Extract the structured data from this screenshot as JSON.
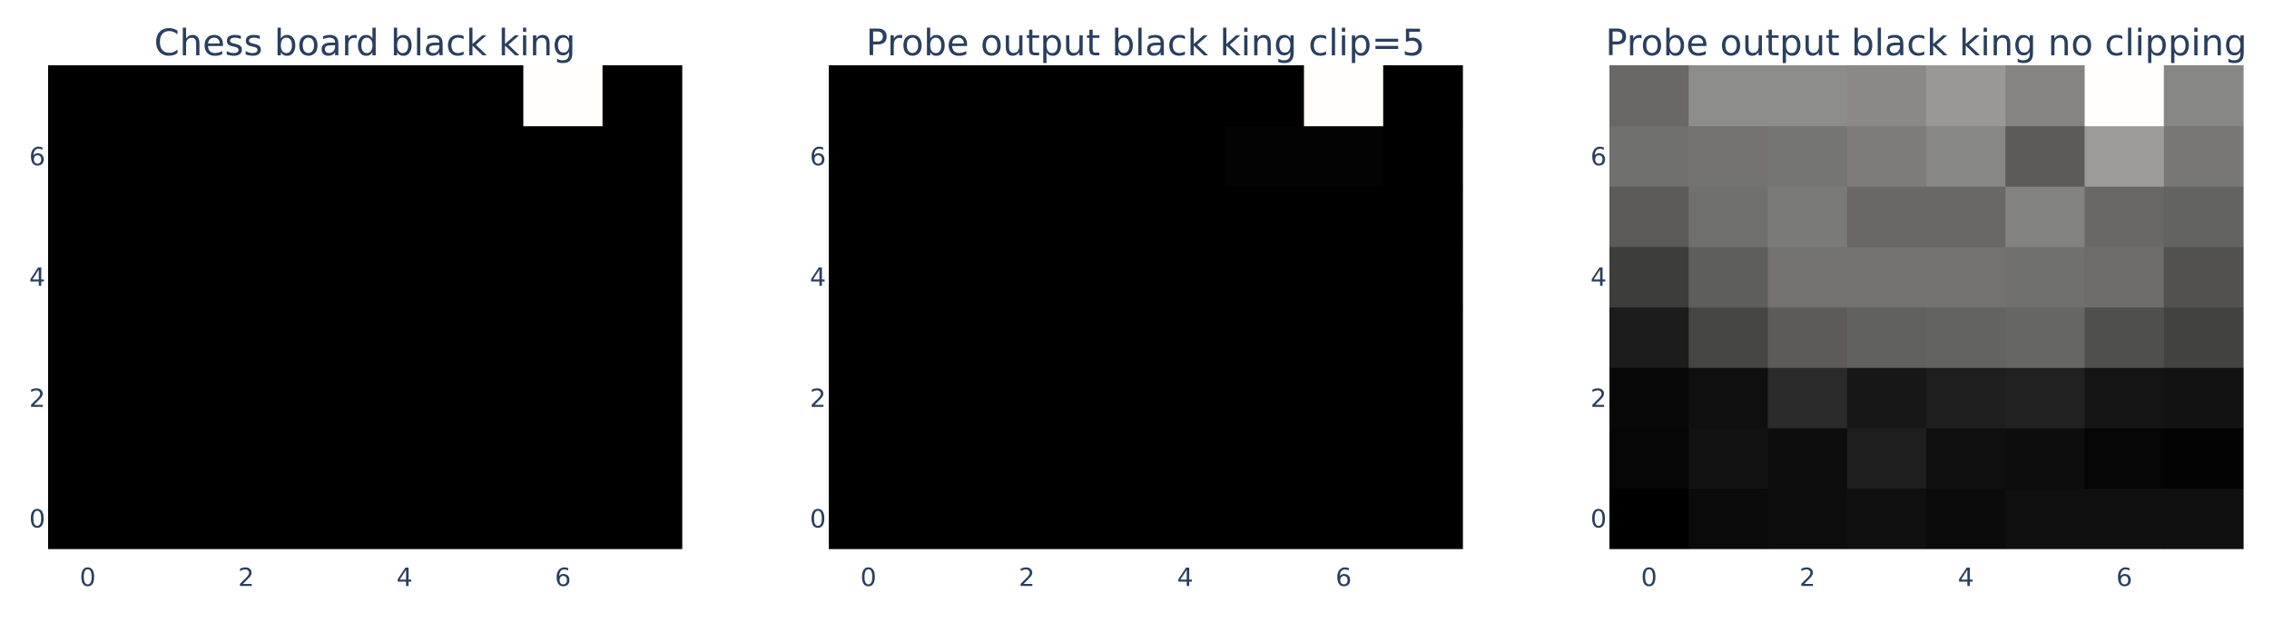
{
  "chart_data": [
    {
      "type": "heatmap",
      "title": "Chess board black king",
      "xticks": [
        "0",
        "2",
        "4",
        "6"
      ],
      "yticks": [
        "0",
        "2",
        "4",
        "6"
      ],
      "colorscale": "greys",
      "z": [
        [
          0,
          0,
          0,
          0,
          0,
          0,
          0,
          0
        ],
        [
          0,
          0,
          0,
          0,
          0,
          0,
          0,
          0
        ],
        [
          0,
          0,
          0,
          0,
          0,
          0,
          0,
          0
        ],
        [
          0,
          0,
          0,
          0,
          0,
          0,
          0,
          0
        ],
        [
          0,
          0,
          0,
          0,
          0,
          0,
          0,
          0
        ],
        [
          0,
          0,
          0,
          0,
          0,
          0,
          0,
          0
        ],
        [
          0,
          0,
          0,
          0,
          0,
          0,
          0,
          0
        ],
        [
          0,
          0,
          0,
          0,
          0,
          0,
          1,
          0
        ]
      ]
    },
    {
      "type": "heatmap",
      "title": "Probe output black king clip=5",
      "xticks": [
        "0",
        "2",
        "4",
        "6"
      ],
      "yticks": [
        "0",
        "2",
        "4",
        "6"
      ],
      "colorscale": "greys",
      "z": [
        [
          0,
          0,
          0,
          0,
          0,
          0,
          0,
          0
        ],
        [
          0,
          0,
          0,
          0,
          0,
          0,
          0,
          0
        ],
        [
          0,
          0,
          0,
          0,
          0,
          0,
          0,
          0
        ],
        [
          0,
          0,
          0,
          0,
          0,
          0,
          0,
          0
        ],
        [
          0,
          0,
          0,
          0,
          0,
          0,
          0,
          0
        ],
        [
          0,
          0,
          0,
          0,
          0,
          0,
          0,
          0
        ],
        [
          0,
          0,
          0,
          0,
          0,
          0.01,
          0.01,
          0
        ],
        [
          0,
          0,
          0,
          0,
          0,
          0,
          1,
          0
        ]
      ]
    },
    {
      "type": "heatmap",
      "title": "Probe output black king no clipping",
      "xticks": [
        "0",
        "2",
        "4",
        "6"
      ],
      "yticks": [
        "0",
        "2",
        "4",
        "6"
      ],
      "colorscale": "greys",
      "z": [
        [
          0.0,
          0.04,
          0.05,
          0.06,
          0.04,
          0.06,
          0.06,
          0.06
        ],
        [
          0.02,
          0.07,
          0.05,
          0.12,
          0.06,
          0.05,
          0.02,
          0.01
        ],
        [
          0.03,
          0.06,
          0.17,
          0.09,
          0.12,
          0.13,
          0.08,
          0.07
        ],
        [
          0.11,
          0.27,
          0.36,
          0.38,
          0.39,
          0.4,
          0.31,
          0.26
        ],
        [
          0.24,
          0.37,
          0.45,
          0.45,
          0.45,
          0.44,
          0.43,
          0.32
        ],
        [
          0.36,
          0.44,
          0.48,
          0.41,
          0.41,
          0.51,
          0.41,
          0.39
        ],
        [
          0.44,
          0.45,
          0.46,
          0.49,
          0.53,
          0.36,
          0.61,
          0.47
        ],
        [
          0.41,
          0.55,
          0.55,
          0.54,
          0.6,
          0.52,
          1.0,
          0.53
        ]
      ]
    }
  ]
}
